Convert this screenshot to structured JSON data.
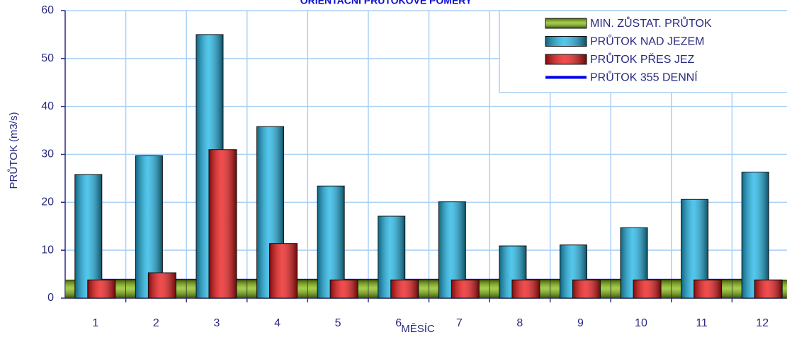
{
  "chart_data": {
    "type": "bar",
    "title": "ORIENTAČNÍ PRŮTOKOVÉ POMĚRY",
    "x_label": "MĚSÍC",
    "y_label": "PRŮTOK (m3/s)",
    "categories": [
      "1",
      "2",
      "3",
      "4",
      "5",
      "6",
      "7",
      "8",
      "9",
      "10",
      "11",
      "12"
    ],
    "series": [
      {
        "name": "MIN. ZŮSTAT. PRŮTOK",
        "color": "#7fb800",
        "kind": "bar",
        "values": [
          3.8,
          3.8,
          3.8,
          3.8,
          3.8,
          3.8,
          3.8,
          3.8,
          3.8,
          3.8,
          3.8,
          3.8
        ]
      },
      {
        "name": "PRŮTOK NAD JEZEM",
        "color": "#19b4e6",
        "kind": "bar",
        "values": [
          25.8,
          29.7,
          55,
          35.8,
          23.4,
          17.1,
          20.1,
          10.9,
          11.1,
          14.7,
          20.6,
          26.3
        ]
      },
      {
        "name": "PRŮTOK PŘES JEZ",
        "color": "#ee1111",
        "kind": "bar",
        "values": [
          3.8,
          5.3,
          31,
          11.4,
          3.8,
          3.8,
          3.8,
          3.8,
          3.8,
          3.8,
          3.8,
          3.8
        ]
      },
      {
        "name": "PRŮTOK 355 DENNÍ",
        "color": "#0000ee",
        "kind": "line",
        "values": [
          3.8,
          3.8,
          3.8,
          3.8,
          3.8,
          3.8,
          3.8,
          3.8,
          3.8,
          3.8,
          3.8,
          3.8
        ]
      }
    ],
    "ylim": [
      0,
      60
    ],
    "yticks": [
      0,
      10,
      20,
      30,
      40,
      50,
      60
    ],
    "grid": true,
    "legend": "top-right"
  }
}
